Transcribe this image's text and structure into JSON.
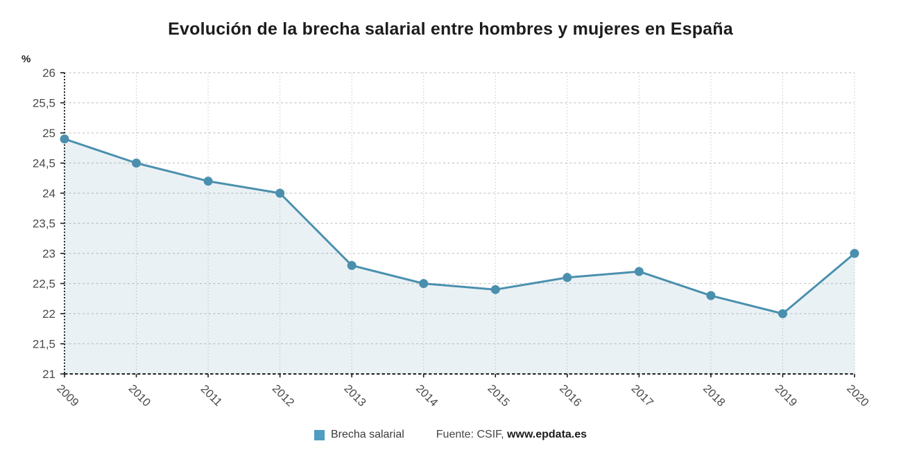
{
  "page": {
    "title": "Evolución de la brecha salarial entre hombres y mujeres en España",
    "unit_label": "%"
  },
  "legend": {
    "series_label": "Brecha salarial",
    "swatch_color": "#4f9dc0"
  },
  "source": {
    "prefix": "Fuente: CSIF,",
    "url": "www.epdata.es"
  },
  "chart_data": {
    "type": "line",
    "title": "Evolución de la brecha salarial entre hombres y mujeres en España",
    "xlabel": "",
    "ylabel": "%",
    "categories": [
      "2009",
      "2010",
      "2011",
      "2012",
      "2013",
      "2014",
      "2015",
      "2016",
      "2017",
      "2018",
      "2019",
      "2020"
    ],
    "series": [
      {
        "name": "Brecha salarial",
        "values": [
          24.9,
          24.5,
          24.2,
          24.0,
          22.8,
          22.5,
          22.4,
          22.6,
          22.7,
          22.3,
          22.0,
          23.0
        ]
      }
    ],
    "ylim": [
      21,
      26
    ],
    "y_ticks": [
      {
        "value": 21,
        "label": "21"
      },
      {
        "value": 21.5,
        "label": "21,5"
      },
      {
        "value": 22,
        "label": "22"
      },
      {
        "value": 22.5,
        "label": "22,5"
      },
      {
        "value": 23,
        "label": "23"
      },
      {
        "value": 23.5,
        "label": "23,5"
      },
      {
        "value": 24,
        "label": "24"
      },
      {
        "value": 24.5,
        "label": "24,5"
      },
      {
        "value": 25,
        "label": "25"
      },
      {
        "value": 25.5,
        "label": "25,5"
      },
      {
        "value": 26,
        "label": "26"
      }
    ],
    "grid": true,
    "legend_position": "bottom",
    "x_label_rotation": 45,
    "colors": {
      "line": "#4a90ae",
      "marker": "#4a90ae",
      "area_fill": "rgba(95,145,180,0.13)",
      "gridline": "#c7c7c7",
      "axis": "#1a1a1a",
      "tick_label": "#4a4a4a"
    }
  }
}
